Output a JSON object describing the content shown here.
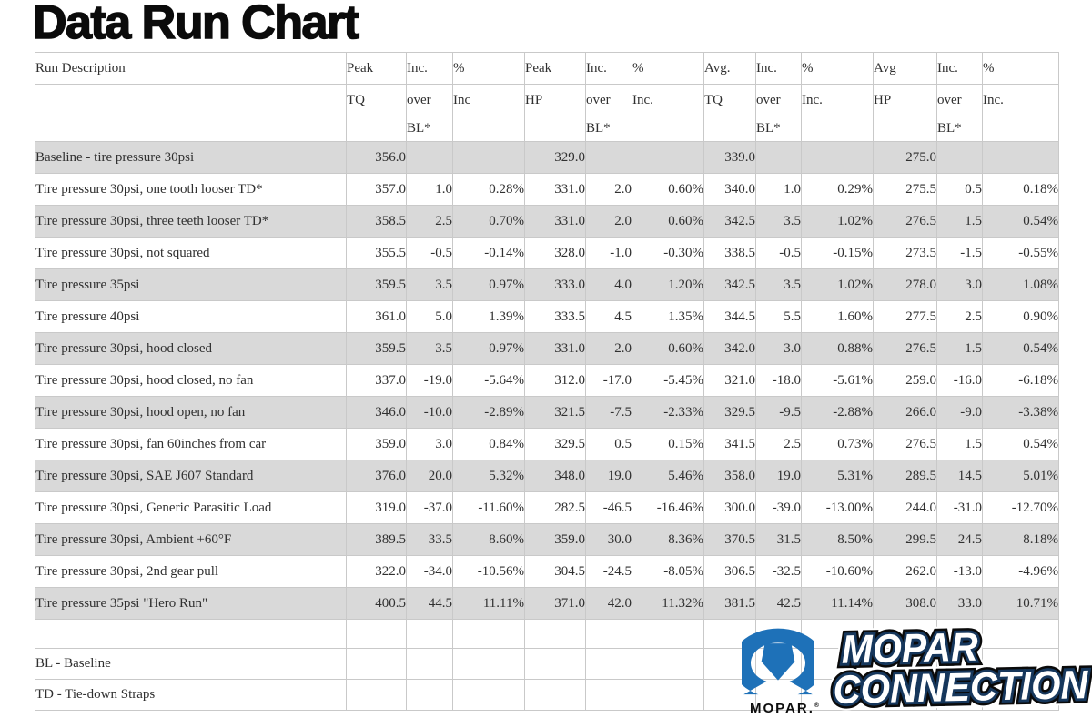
{
  "title": "Data Run Chart",
  "chart_data": {
    "type": "table",
    "title": "Data Run Chart",
    "column_groups": [
      "Run Description",
      "Peak TQ",
      "Inc. over BL*",
      "% Inc",
      "Peak HP",
      "Inc. over BL*",
      "% Inc.",
      "Avg. TQ",
      "Inc. over BL*",
      "% Inc.",
      "Avg HP",
      "Inc. over BL*",
      "% Inc."
    ],
    "header_rows": [
      [
        "Run Description",
        "Peak",
        "Inc.",
        "%",
        "Peak",
        "Inc.",
        "%",
        "Avg.",
        "Inc.",
        "%",
        "Avg",
        "Inc.",
        "%"
      ],
      [
        "",
        "TQ",
        "over",
        "Inc",
        "HP",
        "over",
        "Inc.",
        "TQ",
        "over",
        "Inc.",
        "HP",
        "over",
        "Inc."
      ],
      [
        "",
        "",
        "BL*",
        "",
        "",
        "BL*",
        "",
        "",
        "BL*",
        "",
        "",
        "BL*",
        ""
      ]
    ],
    "rows": [
      [
        "Baseline - tire pressure 30psi",
        "356.0",
        "",
        "",
        "329.0",
        "",
        "",
        "339.0",
        "",
        "",
        "275.0",
        "",
        ""
      ],
      [
        "Tire pressure 30psi, one tooth looser TD*",
        "357.0",
        "1.0",
        "0.28%",
        "331.0",
        "2.0",
        "0.60%",
        "340.0",
        "1.0",
        "0.29%",
        "275.5",
        "0.5",
        "0.18%"
      ],
      [
        "Tire pressure 30psi, three teeth looser TD*",
        "358.5",
        "2.5",
        "0.70%",
        "331.0",
        "2.0",
        "0.60%",
        "342.5",
        "3.5",
        "1.02%",
        "276.5",
        "1.5",
        "0.54%"
      ],
      [
        "Tire pressure 30psi, not squared",
        "355.5",
        "-0.5",
        "-0.14%",
        "328.0",
        "-1.0",
        "-0.30%",
        "338.5",
        "-0.5",
        "-0.15%",
        "273.5",
        "-1.5",
        "-0.55%"
      ],
      [
        "Tire pressure 35psi",
        "359.5",
        "3.5",
        "0.97%",
        "333.0",
        "4.0",
        "1.20%",
        "342.5",
        "3.5",
        "1.02%",
        "278.0",
        "3.0",
        "1.08%"
      ],
      [
        "Tire pressure 40psi",
        "361.0",
        "5.0",
        "1.39%",
        "333.5",
        "4.5",
        "1.35%",
        "344.5",
        "5.5",
        "1.60%",
        "277.5",
        "2.5",
        "0.90%"
      ],
      [
        "Tire pressure 30psi, hood closed",
        "359.5",
        "3.5",
        "0.97%",
        "331.0",
        "2.0",
        "0.60%",
        "342.0",
        "3.0",
        "0.88%",
        "276.5",
        "1.5",
        "0.54%"
      ],
      [
        "Tire pressure 30psi, hood closed, no fan",
        "337.0",
        "-19.0",
        "-5.64%",
        "312.0",
        "-17.0",
        "-5.45%",
        "321.0",
        "-18.0",
        "-5.61%",
        "259.0",
        "-16.0",
        "-6.18%"
      ],
      [
        "Tire pressure 30psi, hood open, no fan",
        "346.0",
        "-10.0",
        "-2.89%",
        "321.5",
        "-7.5",
        "-2.33%",
        "329.5",
        "-9.5",
        "-2.88%",
        "266.0",
        "-9.0",
        "-3.38%"
      ],
      [
        "Tire pressure 30psi, fan 60inches from car",
        "359.0",
        "3.0",
        "0.84%",
        "329.5",
        "0.5",
        "0.15%",
        "341.5",
        "2.5",
        "0.73%",
        "276.5",
        "1.5",
        "0.54%"
      ],
      [
        "Tire pressure 30psi, SAE J607 Standard",
        "376.0",
        "20.0",
        "5.32%",
        "348.0",
        "19.0",
        "5.46%",
        "358.0",
        "19.0",
        "5.31%",
        "289.5",
        "14.5",
        "5.01%"
      ],
      [
        "Tire pressure 30psi, Generic Parasitic Load",
        "319.0",
        "-37.0",
        "-11.60%",
        "282.5",
        "-46.5",
        "-16.46%",
        "300.0",
        "-39.0",
        "-13.00%",
        "244.0",
        "-31.0",
        "-12.70%"
      ],
      [
        "Tire pressure 30psi, Ambient +60°F",
        "389.5",
        "33.5",
        "8.60%",
        "359.0",
        "30.0",
        "8.36%",
        "370.5",
        "31.5",
        "8.50%",
        "299.5",
        "24.5",
        "8.18%"
      ],
      [
        "Tire pressure 30psi, 2nd gear pull",
        "322.0",
        "-34.0",
        "-10.56%",
        "304.5",
        "-24.5",
        "-8.05%",
        "306.5",
        "-32.5",
        "-10.60%",
        "262.0",
        "-13.0",
        "-4.96%"
      ],
      [
        "Tire pressure 35psi \"Hero Run\"",
        "400.5",
        "44.5",
        "11.11%",
        "371.0",
        "42.0",
        "11.32%",
        "381.5",
        "42.5",
        "11.14%",
        "308.0",
        "33.0",
        "10.71%"
      ]
    ],
    "footnotes": [
      "BL - Baseline",
      "TD - Tie-down Straps"
    ]
  },
  "logo": {
    "symbol": "mopar-omega-icon",
    "wordmark": "MOPAR.",
    "registered": "®",
    "line1": "MOPAR",
    "line2": "CONNECTION",
    "colors": {
      "blue": "#1e71b8",
      "outline_navy": "#16375c",
      "outline_black": "#0a0a0a",
      "fill": "#ffffff",
      "halo": "#ffffff"
    }
  },
  "colors": {
    "stripe": "#d9d9d9",
    "grid": "#c9c9c9",
    "text": "#303030",
    "title": "#0b0b0b"
  }
}
